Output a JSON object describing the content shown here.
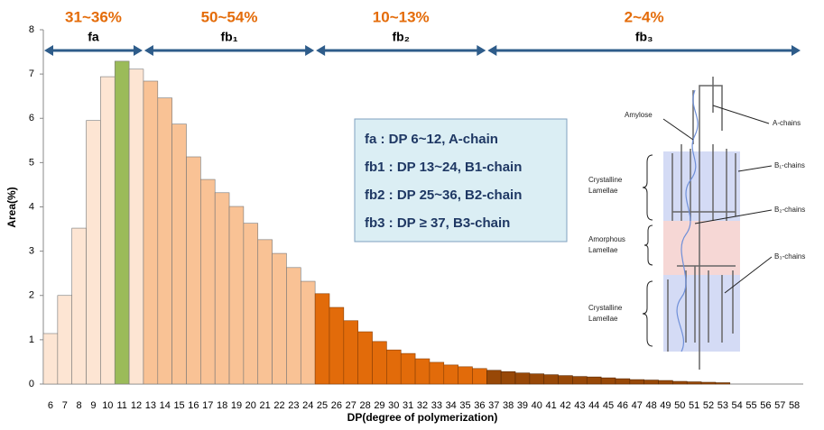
{
  "chart_data": {
    "type": "bar",
    "ylabel": "Area(%)",
    "xlabel": "DP(degree of polymerization)",
    "categories": [
      "6",
      "7",
      "8",
      "9",
      "10",
      "11",
      "12",
      "13",
      "14",
      "15",
      "16",
      "17",
      "18",
      "19",
      "20",
      "21",
      "22",
      "23",
      "24",
      "25",
      "26",
      "27",
      "28",
      "29",
      "30",
      "31",
      "32",
      "33",
      "34",
      "35",
      "36",
      "37",
      "38",
      "39",
      "40",
      "41",
      "42",
      "43",
      "44",
      "45",
      "46",
      "47",
      "48",
      "49",
      "50",
      "51",
      "52",
      "53",
      "54",
      "55",
      "56",
      "57",
      "58"
    ],
    "values": [
      1.14,
      2.0,
      3.52,
      5.95,
      6.94,
      7.29,
      7.11,
      6.84,
      6.46,
      5.87,
      5.13,
      4.62,
      4.32,
      4.01,
      3.63,
      3.26,
      2.95,
      2.63,
      2.32,
      2.04,
      1.73,
      1.43,
      1.18,
      0.96,
      0.77,
      0.69,
      0.57,
      0.49,
      0.43,
      0.39,
      0.35,
      0.31,
      0.28,
      0.25,
      0.23,
      0.21,
      0.19,
      0.17,
      0.16,
      0.14,
      0.12,
      0.1,
      0.09,
      0.08,
      0.06,
      0.05,
      0.04,
      0.03,
      0,
      0,
      0,
      0,
      0
    ],
    "colors": [
      "#fde5d3",
      "#fde5d3",
      "#fde5d3",
      "#fde5d3",
      "#fde5d3",
      "#9bbb59",
      "#fde5d3",
      "#f9c295",
      "#f9c295",
      "#f9c295",
      "#f9c295",
      "#f9c295",
      "#f9c295",
      "#f9c295",
      "#f9c295",
      "#f9c295",
      "#f9c295",
      "#f9c295",
      "#f9c295",
      "#e26b0a",
      "#e26b0a",
      "#e26b0a",
      "#e26b0a",
      "#e26b0a",
      "#e26b0a",
      "#e26b0a",
      "#e26b0a",
      "#e26b0a",
      "#e26b0a",
      "#e26b0a",
      "#e26b0a",
      "#984807",
      "#984807",
      "#984807",
      "#984807",
      "#984807",
      "#984807",
      "#984807",
      "#984807",
      "#984807",
      "#984807",
      "#984807",
      "#984807",
      "#984807",
      "#984807",
      "#984807",
      "#984807",
      "#984807",
      "#984807",
      "#984807",
      "#984807",
      "#984807",
      "#984807"
    ],
    "ylim": [
      0,
      8
    ],
    "yticks": [
      0,
      1,
      2,
      3,
      4,
      5,
      6,
      7,
      8
    ],
    "groups": [
      {
        "percent": "31~36%",
        "label": "fa"
      },
      {
        "percent": "50~54%",
        "label": "fb₁"
      },
      {
        "percent": "10~13%",
        "label": "fb₂"
      },
      {
        "percent": "2~4%",
        "label": "fb₃"
      }
    ],
    "box_lines": [
      "fa : DP 6~12,  A-chain",
      "fb1 : DP 13~24, B1-chain",
      "fb2 : DP 25~36, B2-chain",
      "fb3 : DP  ≥  37, B3-chain"
    ]
  },
  "diagram": {
    "amylose": "Amylose",
    "a_chains": "A-chains",
    "b1_chains": "B₁-chains",
    "b2_chains": "B₂-chains",
    "b3_chains": "B₃-chains",
    "crystalline_top": [
      "Crystalline",
      "Lamellae"
    ],
    "amorphous": [
      "Amorphous",
      "Lamellae"
    ],
    "crystalline_bottom": [
      "Crystalline",
      "Lamellae"
    ]
  }
}
